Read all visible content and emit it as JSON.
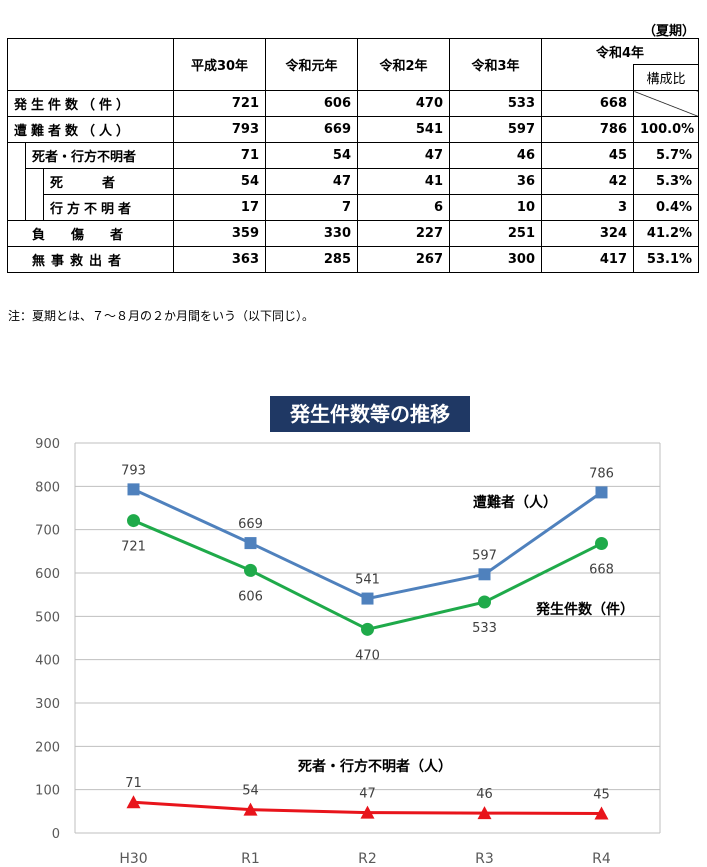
{
  "table": {
    "season": "（夏期）",
    "headers": [
      "平成30年",
      "令和元年",
      "令和2年",
      "令和3年",
      "令和4年"
    ],
    "ratio_header": "構成比",
    "rows": [
      {
        "label": "発生件数（件）",
        "values": [
          "721",
          "606",
          "470",
          "533",
          "668"
        ],
        "ratio": ""
      },
      {
        "label": "遭難者数（人）",
        "values": [
          "793",
          "669",
          "541",
          "597",
          "786"
        ],
        "ratio": "100.0%"
      },
      {
        "label": "死者・行方不明者",
        "values": [
          "71",
          "54",
          "47",
          "46",
          "45"
        ],
        "ratio": "5.7%"
      },
      {
        "label": "死　　　者",
        "values": [
          "54",
          "47",
          "41",
          "36",
          "42"
        ],
        "ratio": "5.3%"
      },
      {
        "label": "行方不明者",
        "values": [
          "17",
          "7",
          "6",
          "10",
          "3"
        ],
        "ratio": "0.4%"
      },
      {
        "label": "負　　傷　　者",
        "values": [
          "359",
          "330",
          "227",
          "251",
          "324"
        ],
        "ratio": "41.2%"
      },
      {
        "label": "無事救出者",
        "values": [
          "363",
          "285",
          "267",
          "300",
          "417"
        ],
        "ratio": "53.1%"
      }
    ],
    "note": "注：夏期とは、７～８月の２か月間をいう（以下同じ）。"
  },
  "chart_data": {
    "type": "line",
    "title": "発生件数等の推移",
    "categories": [
      "H30",
      "R1",
      "R2",
      "R3",
      "R4"
    ],
    "ylim": [
      0,
      900
    ],
    "yticks": [
      "0",
      "100",
      "200",
      "300",
      "400",
      "500",
      "600",
      "700",
      "800",
      "900"
    ],
    "grid": true,
    "series": [
      {
        "name": "遭難者（人）",
        "values": [
          793,
          669,
          541,
          597,
          786
        ],
        "color": "#4f81bd",
        "marker": "square"
      },
      {
        "name": "発生件数（件）",
        "values": [
          721,
          606,
          470,
          533,
          668
        ],
        "color": "#1faa4a",
        "marker": "circle"
      },
      {
        "name": "死者・行方不明者（人）",
        "values": [
          71,
          54,
          47,
          46,
          45
        ],
        "color": "#e8141b",
        "marker": "triangle"
      }
    ]
  }
}
